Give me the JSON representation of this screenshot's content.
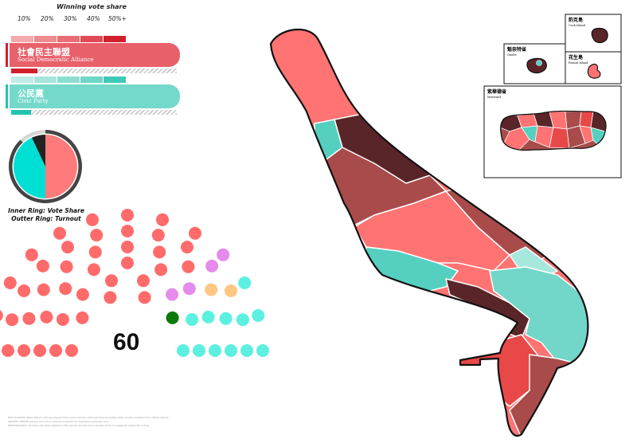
{
  "legend": {
    "title": "Winning vote share",
    "scale_labels": [
      "10%",
      "20%",
      "30%",
      "40%",
      "50%+"
    ]
  },
  "parties": [
    {
      "key": "sda",
      "name_zh": "社會民主聯盟",
      "name_en": "Social Democratic Alliance",
      "color": "#e8606a",
      "accent": "#d0202c",
      "scale_colors": [
        "#f4a9ad",
        "#ee8b91",
        "#e86e76",
        "#df4a54",
        "#d0202c"
      ],
      "vote_share_fill": 0.16
    },
    {
      "key": "civic",
      "name_zh": "公民黨",
      "name_en": "Civic Party",
      "color": "#74d9cb",
      "accent": "#20c4b0",
      "scale_colors": [
        "#bfece6",
        "#a6e5dc",
        "#8cded2",
        "#6fd6c8",
        "#3fcab8"
      ],
      "vote_share_fill": 0.12
    }
  ],
  "ring_chart": {
    "caption_line1": "Inner Ring: Vote Share",
    "caption_line2": "Outter Ring: Turnout",
    "vote_share": [
      {
        "party": "Social Democratic Alliance",
        "share": 0.5,
        "color": "#ff7b7b"
      },
      {
        "party": "Civic Party",
        "share": 0.43,
        "color": "#00dfd3"
      },
      {
        "party": "Other",
        "share": 0.07,
        "color": "#222222"
      }
    ],
    "turnout": 0.88,
    "turnout_color": "#444444",
    "turnout_rest_color": "#d5d5d5"
  },
  "parliament": {
    "total_label": "60",
    "groups": [
      {
        "name": "Social Democratic Alliance",
        "seats": 41,
        "color": "#ff6b6b"
      },
      {
        "name": "Purple group",
        "seats": 4,
        "color": "#e58bec"
      },
      {
        "name": "Green group",
        "seats": 1,
        "color": "#0a7a0a"
      },
      {
        "name": "Orange group",
        "seats": 2,
        "color": "#ffc684"
      },
      {
        "name": "Civic Party",
        "seats": 12,
        "color": "#5cf0e0"
      }
    ]
  },
  "map": {
    "colors": {
      "sda_light": "#ff7373",
      "sda_mid": "#a94b4b",
      "sda_dark": "#5a2528",
      "sda_bright": "#e84848",
      "civic_mid": "#55cfc0",
      "civic_light": "#72d6c8",
      "civic_pale": "#a7e8dd"
    },
    "insets": [
      {
        "key": "cock",
        "name_zh": "豹克島",
        "name_en": "Cock Island"
      },
      {
        "key": "quelet",
        "name_zh": "魁奈特省",
        "name_en": "Quelet"
      },
      {
        "key": "peanut",
        "name_zh": "花生島",
        "name_en": "Peanut Island"
      },
      {
        "key": "mecward",
        "name_zh": "紫華德省",
        "name_en": "Meeward"
      }
    ]
  },
  "footnotes": [
    "MAP SOURCES: Base district outlines adapted from public-domain administrative boundary data; results compiled from official returns.",
    "GRAPHIC DESIGN: Layout and colour scheme prepared for illustrative purposes only.",
    "METHODOLOGY: Winning vote share shaded in five bands; turnout ring indicates share of registered electorate voting."
  ]
}
